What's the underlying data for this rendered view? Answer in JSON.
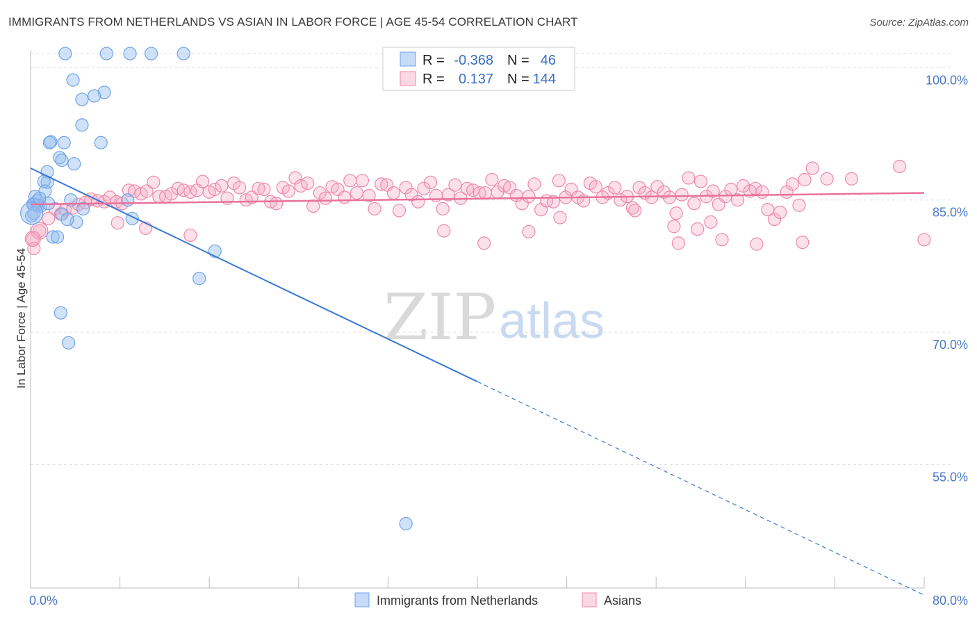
{
  "header": {
    "title": "IMMIGRANTS FROM NETHERLANDS VS ASIAN IN LABOR FORCE | AGE 45-54 CORRELATION CHART",
    "source": "Source: ZipAtlas.com"
  },
  "watermark": {
    "zip": "ZIP",
    "atlas": "atlas"
  },
  "colors": {
    "blue": "#6fa3e8",
    "blue_fill": "rgba(150,190,240,0.45)",
    "blue_line": "#3a78d4",
    "pink": "#ee88aa",
    "pink_fill": "rgba(245,170,195,0.35)",
    "pink_line": "#e8729a",
    "grid": "#dddddd",
    "tick_text": "#4a78c8"
  },
  "stats_legend": {
    "rows": [
      {
        "r_label": "R =",
        "r_value": "-0.368",
        "n_label": "N =",
        "n_value": "46"
      },
      {
        "r_label": "R =",
        "r_value": "0.137",
        "n_label": "N =",
        "n_value": "144"
      }
    ]
  },
  "chart_data": {
    "type": "scatter",
    "title": "IMMIGRANTS FROM NETHERLANDS VS ASIAN IN LABOR FORCE | AGE 45-54 CORRELATION CHART",
    "xlabel": "",
    "ylabel": "In Labor Force | Age 45-54",
    "xlim": [
      0,
      80
    ],
    "ylim": [
      41,
      102
    ],
    "x_tick_labels": [
      "0.0%",
      "80.0%"
    ],
    "y_ticks": [
      100,
      85,
      70,
      55
    ],
    "y_tick_labels": [
      "100.0%",
      "85.0%",
      "70.0%",
      "55.0%"
    ],
    "grid": true,
    "legend_position": "bottom-center",
    "series": [
      {
        "name": "Immigrants from Netherlands",
        "color": "#6fa3e8",
        "trend": {
          "x0": 0,
          "y0": 88.6,
          "x1": 40,
          "y1": 64.4,
          "dashed_to_x": 80,
          "dashed_to_y": 40.2
        },
        "points": [
          [
            3.1,
            101.6
          ],
          [
            6.8,
            101.6
          ],
          [
            8.9,
            101.6
          ],
          [
            10.8,
            101.6
          ],
          [
            13.7,
            101.6
          ],
          [
            3.8,
            98.6
          ],
          [
            6.6,
            97.2
          ],
          [
            4.6,
            96.4
          ],
          [
            5.7,
            96.8
          ],
          [
            4.6,
            93.5
          ],
          [
            6.3,
            91.5
          ],
          [
            1.8,
            91.6
          ],
          [
            1.7,
            91.5
          ],
          [
            3.0,
            91.5
          ],
          [
            2.6,
            89.8
          ],
          [
            2.8,
            89.5
          ],
          [
            3.9,
            89.1
          ],
          [
            1.5,
            88.2
          ],
          [
            1.5,
            87.0
          ],
          [
            1.2,
            87.1
          ],
          [
            1.3,
            86.0
          ],
          [
            0.4,
            85.4
          ],
          [
            0.6,
            84.9
          ],
          [
            0.5,
            84.4
          ],
          [
            0.7,
            84.4
          ],
          [
            0.9,
            84.3
          ],
          [
            0.2,
            84.5
          ],
          [
            0.3,
            84.5
          ],
          [
            1.6,
            84.6
          ],
          [
            0.1,
            83.2
          ],
          [
            4.7,
            84.0
          ],
          [
            2.8,
            83.4
          ],
          [
            8.7,
            85.0
          ],
          [
            9.1,
            82.9
          ],
          [
            4.1,
            82.5
          ],
          [
            3.3,
            82.8
          ],
          [
            2.0,
            80.8
          ],
          [
            2.4,
            80.8
          ],
          [
            16.5,
            79.2
          ],
          [
            15.1,
            76.1
          ],
          [
            2.7,
            72.2
          ],
          [
            3.4,
            68.8
          ],
          [
            33.6,
            48.3
          ],
          [
            0.8,
            85.2
          ],
          [
            3.6,
            85.0
          ],
          [
            0.3,
            83.5
          ]
        ]
      },
      {
        "name": "Asians",
        "color": "#ee88aa",
        "trend": {
          "x0": 0,
          "y0": 84.5,
          "x1": 80,
          "y1": 85.8
        },
        "points": [
          [
            0.2,
            80.6
          ],
          [
            0.8,
            81.5
          ],
          [
            1.6,
            82.9
          ],
          [
            2.2,
            84.0
          ],
          [
            2.7,
            83.4
          ],
          [
            3.1,
            83.9
          ],
          [
            3.8,
            84.1
          ],
          [
            4.3,
            84.5
          ],
          [
            4.9,
            84.7
          ],
          [
            5.4,
            85.1
          ],
          [
            6.0,
            84.9
          ],
          [
            6.6,
            84.8
          ],
          [
            7.1,
            85.3
          ],
          [
            7.7,
            84.8
          ],
          [
            8.2,
            84.6
          ],
          [
            8.8,
            86.1
          ],
          [
            9.3,
            86.0
          ],
          [
            9.9,
            85.7
          ],
          [
            10.4,
            86.0
          ],
          [
            11.0,
            87.0
          ],
          [
            11.5,
            85.4
          ],
          [
            12.1,
            85.4
          ],
          [
            12.6,
            85.7
          ],
          [
            13.2,
            86.3
          ],
          [
            13.7,
            86.1
          ],
          [
            14.3,
            85.9
          ],
          [
            14.9,
            86.1
          ],
          [
            15.4,
            87.1
          ],
          [
            16.0,
            85.9
          ],
          [
            16.5,
            86.2
          ],
          [
            17.1,
            86.6
          ],
          [
            17.6,
            85.2
          ],
          [
            18.2,
            86.9
          ],
          [
            18.7,
            86.4
          ],
          [
            19.3,
            85.0
          ],
          [
            19.8,
            85.3
          ],
          [
            20.4,
            86.3
          ],
          [
            20.9,
            86.2
          ],
          [
            21.5,
            84.8
          ],
          [
            22.0,
            84.6
          ],
          [
            22.6,
            86.4
          ],
          [
            23.1,
            86.0
          ],
          [
            23.7,
            87.5
          ],
          [
            24.2,
            86.6
          ],
          [
            24.8,
            86.9
          ],
          [
            25.3,
            84.3
          ],
          [
            25.9,
            85.8
          ],
          [
            26.4,
            85.2
          ],
          [
            27.0,
            86.5
          ],
          [
            27.5,
            86.2
          ],
          [
            28.1,
            85.3
          ],
          [
            28.6,
            87.2
          ],
          [
            29.2,
            85.8
          ],
          [
            29.7,
            87.2
          ],
          [
            30.3,
            85.5
          ],
          [
            30.8,
            84.0
          ],
          [
            31.4,
            86.8
          ],
          [
            31.9,
            86.7
          ],
          [
            32.5,
            85.8
          ],
          [
            33.0,
            83.8
          ],
          [
            33.6,
            86.4
          ],
          [
            34.1,
            85.6
          ],
          [
            34.7,
            84.8
          ],
          [
            35.2,
            86.3
          ],
          [
            35.8,
            87.0
          ],
          [
            36.3,
            85.5
          ],
          [
            36.9,
            84.0
          ],
          [
            37.4,
            85.6
          ],
          [
            38.0,
            86.7
          ],
          [
            38.5,
            85.2
          ],
          [
            39.1,
            86.3
          ],
          [
            39.6,
            86.1
          ],
          [
            40.2,
            85.8
          ],
          [
            40.7,
            85.8
          ],
          [
            41.3,
            87.3
          ],
          [
            41.8,
            85.9
          ],
          [
            42.4,
            86.6
          ],
          [
            42.9,
            86.4
          ],
          [
            43.5,
            85.5
          ],
          [
            44.0,
            84.6
          ],
          [
            44.6,
            85.4
          ],
          [
            45.1,
            86.8
          ],
          [
            45.7,
            83.9
          ],
          [
            46.2,
            84.9
          ],
          [
            46.8,
            84.8
          ],
          [
            47.3,
            87.2
          ],
          [
            47.9,
            85.3
          ],
          [
            48.4,
            86.2
          ],
          [
            49.0,
            85.3
          ],
          [
            49.5,
            84.9
          ],
          [
            50.1,
            86.9
          ],
          [
            50.6,
            86.5
          ],
          [
            51.2,
            85.3
          ],
          [
            51.7,
            85.8
          ],
          [
            52.3,
            86.4
          ],
          [
            52.8,
            85.0
          ],
          [
            53.4,
            85.4
          ],
          [
            53.9,
            84.1
          ],
          [
            54.5,
            86.4
          ],
          [
            55.0,
            85.8
          ],
          [
            55.6,
            85.3
          ],
          [
            56.1,
            86.5
          ],
          [
            56.7,
            85.9
          ],
          [
            57.2,
            85.3
          ],
          [
            57.8,
            83.5
          ],
          [
            58.3,
            85.6
          ],
          [
            58.9,
            87.5
          ],
          [
            59.4,
            84.6
          ],
          [
            60.0,
            87.1
          ],
          [
            60.5,
            85.4
          ],
          [
            61.1,
            86.0
          ],
          [
            61.6,
            84.5
          ],
          [
            62.2,
            85.4
          ],
          [
            62.7,
            86.2
          ],
          [
            63.3,
            85.0
          ],
          [
            63.8,
            86.6
          ],
          [
            64.4,
            86.0
          ],
          [
            64.9,
            86.3
          ],
          [
            65.5,
            85.9
          ],
          [
            66.0,
            83.9
          ],
          [
            66.6,
            82.8
          ],
          [
            67.1,
            83.6
          ],
          [
            67.7,
            85.9
          ],
          [
            68.2,
            86.8
          ],
          [
            68.8,
            84.4
          ],
          [
            69.3,
            87.3
          ],
          [
            70.0,
            88.6
          ],
          [
            71.3,
            87.4
          ],
          [
            73.5,
            87.4
          ],
          [
            77.8,
            88.8
          ],
          [
            54.1,
            83.8
          ],
          [
            60.9,
            82.5
          ],
          [
            47.4,
            83.0
          ],
          [
            10.3,
            81.8
          ],
          [
            14.3,
            81.0
          ],
          [
            7.8,
            82.4
          ],
          [
            57.6,
            82.0
          ],
          [
            37.0,
            81.5
          ],
          [
            40.6,
            80.1
          ],
          [
            44.6,
            81.4
          ],
          [
            61.9,
            80.5
          ],
          [
            65.0,
            80.0
          ],
          [
            69.1,
            80.2
          ],
          [
            58.0,
            80.1
          ],
          [
            80.0,
            80.5
          ],
          [
            0.3,
            79.5
          ],
          [
            59.7,
            81.7
          ]
        ]
      }
    ]
  },
  "bottom_legend": {
    "items": [
      {
        "label": "Immigrants from Netherlands"
      },
      {
        "label": "Asians"
      }
    ]
  }
}
